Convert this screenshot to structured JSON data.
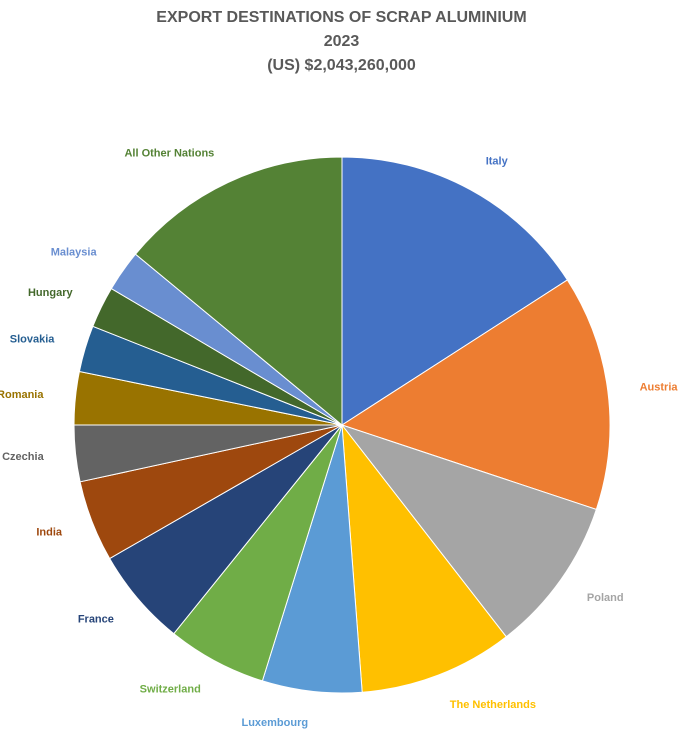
{
  "chart_data": {
    "type": "pie",
    "title_lines": [
      "EXPORT DESTINATIONS OF SCRAP ALUMINIUM",
      "2023",
      "(US) $2,043,260,000"
    ],
    "slices": [
      {
        "label": "Italy",
        "share": 15.9,
        "color": "#4472C4"
      },
      {
        "label": "Austria",
        "share": 14.2,
        "color": "#ED7D31"
      },
      {
        "label": "Poland",
        "share": 9.4,
        "color": "#A5A5A5"
      },
      {
        "label": "The Netherlands",
        "share": 9.3,
        "color": "#FFC000"
      },
      {
        "label": "Luxembourg",
        "share": 6.0,
        "color": "#5B9BD5"
      },
      {
        "label": "Switzerland",
        "share": 6.0,
        "color": "#70AD47"
      },
      {
        "label": "France",
        "share": 5.9,
        "color": "#264478"
      },
      {
        "label": "India",
        "share": 4.9,
        "color": "#9E480E"
      },
      {
        "label": "Czechia",
        "share": 3.4,
        "color": "#636363"
      },
      {
        "label": "Romania",
        "share": 3.2,
        "color": "#997300"
      },
      {
        "label": "Slovakia",
        "share": 2.8,
        "color": "#255E91"
      },
      {
        "label": "Hungary",
        "share": 2.5,
        "color": "#43682B"
      },
      {
        "label": "Malaysia",
        "share": 2.5,
        "color": "#698ED0"
      },
      {
        "label": "All Other Nations",
        "share": 14.0,
        "color": "#548235"
      }
    ],
    "start_angle": "12 o'clock",
    "direction": "clockwise",
    "legend": "none (labels outside slices)"
  }
}
